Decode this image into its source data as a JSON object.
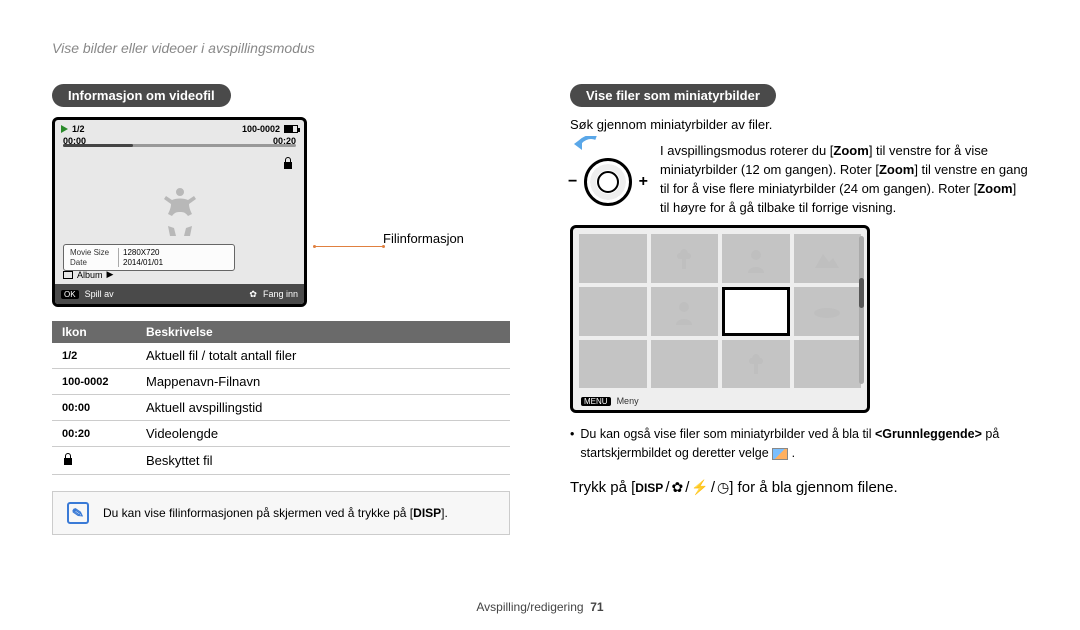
{
  "breadcrumb": "Vise bilder eller videoer i avspillingsmodus",
  "left": {
    "heading": "Informasjon om videofil",
    "preview": {
      "counter": "1/2",
      "folder": "100-0002",
      "time_current": "00:00",
      "time_total": "00:20",
      "info_movie_key": "Movie Size",
      "info_movie_val": "1280X720",
      "info_date_key": "Date",
      "info_date_val": "2014/01/01",
      "album_label": "Album",
      "ok_label": "OK",
      "play_label": "Spill av",
      "capture_label": "Fang inn"
    },
    "callout_label": "Filinformasjon",
    "table": {
      "col_icon": "Ikon",
      "col_desc": "Beskrivelse",
      "rows": [
        {
          "icon_text": "1/2",
          "icon_kind": "text",
          "desc": "Aktuell fil / totalt antall filer"
        },
        {
          "icon_text": "100-0002",
          "icon_kind": "text",
          "desc": "Mappenavn-Filnavn"
        },
        {
          "icon_text": "00:00",
          "icon_kind": "text",
          "desc": "Aktuell avspillingstid"
        },
        {
          "icon_text": "00:20",
          "icon_kind": "text",
          "desc": "Videolengde"
        },
        {
          "icon_text": "lock",
          "icon_kind": "lock",
          "desc": "Beskyttet fil"
        }
      ]
    },
    "note_before": "Du kan vise filinformasjonen på skjermen ved å trykke på [",
    "note_disp": "DISP",
    "note_after": "]."
  },
  "right": {
    "heading": "Vise filer som miniatyrbilder",
    "desc": "Søk gjennom miniatyrbilder av filer.",
    "zoom_text_parts": {
      "p1": "I avspillingsmodus roterer du [",
      "b1": "Zoom",
      "p2": "] til venstre for å vise miniatyrbilder (12 om gangen). Roter [",
      "b2": "Zoom",
      "p3": "] til venstre en gang til for å vise flere miniatyrbilder (24 om gangen). Roter [",
      "b3": "Zoom",
      "p4": "] til høyre for å gå tilbake til forrige visning."
    },
    "menu_chip": "MENU",
    "menu_label": "Meny",
    "bullet_before": "Du kan også vise filer som miniatyrbilder ved å bla til ",
    "bullet_bold": "<Grunnleggende>",
    "bullet_after": " på startskjermbildet og deretter velge ",
    "bullet_period": " .",
    "press_before": "Trykk på [",
    "press_disp": "DISP",
    "press_after": "] for å bla gjennom filene."
  },
  "footer": {
    "section": "Avspilling/redigering",
    "page": "71"
  }
}
